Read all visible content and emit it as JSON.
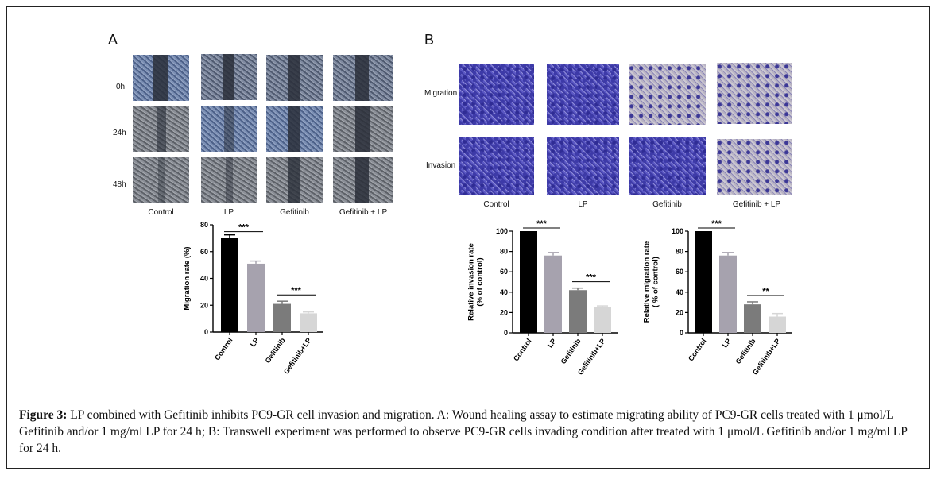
{
  "panelA": {
    "letter": "A",
    "row_labels": [
      "0h",
      "24h",
      "48h"
    ],
    "col_labels": [
      "Control",
      "LP",
      "Gefitinib",
      "Gefitinib + LP"
    ]
  },
  "panelB": {
    "letter": "B",
    "row_labels": [
      "Migration",
      "Invasion"
    ],
    "col_labels": [
      "Control",
      "LP",
      "Gefitinib",
      "Gefitinib + LP"
    ]
  },
  "chart_data": [
    {
      "type": "bar",
      "ylabel": "Migration rate (%)",
      "categories": [
        "Control",
        "LP",
        "Gefitinib",
        "Gefitinib+LP"
      ],
      "values": [
        70,
        51,
        21,
        14
      ],
      "errors": [
        2.5,
        2,
        2,
        1
      ],
      "ylim": [
        0,
        80
      ],
      "yticks": [
        0,
        20,
        40,
        60,
        80
      ],
      "colors": [
        "#000000",
        "#a6a2ae",
        "#7b7b7b",
        "#d6d6d6"
      ],
      "significance": [
        {
          "from": 0,
          "to": 1,
          "label": "***"
        },
        {
          "from": 2,
          "to": 3,
          "label": "***"
        }
      ]
    },
    {
      "type": "bar",
      "ylabel": "Relative invasion rate\n(% of control)",
      "categories": [
        "Control",
        "LP",
        "Gefitinib",
        "Gefitinib+LP"
      ],
      "values": [
        100,
        76,
        42,
        25
      ],
      "errors": [
        0,
        3,
        2,
        1.5
      ],
      "ylim": [
        0,
        100
      ],
      "yticks": [
        0,
        20,
        40,
        60,
        80,
        100
      ],
      "colors": [
        "#000000",
        "#a6a2ae",
        "#7b7b7b",
        "#d6d6d6"
      ],
      "significance": [
        {
          "from": 0,
          "to": 1,
          "label": "***"
        },
        {
          "from": 2,
          "to": 3,
          "label": "***"
        }
      ]
    },
    {
      "type": "bar",
      "ylabel": "Relative migration rate\n( % of control)",
      "categories": [
        "Control",
        "LP",
        "Gefitinib",
        "Gefitinib+LP"
      ],
      "values": [
        100,
        76,
        28,
        16
      ],
      "errors": [
        0,
        3,
        2.5,
        3
      ],
      "ylim": [
        0,
        100
      ],
      "yticks": [
        0,
        20,
        40,
        60,
        80,
        100
      ],
      "colors": [
        "#000000",
        "#a6a2ae",
        "#7b7b7b",
        "#d6d6d6"
      ],
      "significance": [
        {
          "from": 0,
          "to": 1,
          "label": "***"
        },
        {
          "from": 2,
          "to": 3,
          "label": "**"
        }
      ]
    }
  ],
  "caption": {
    "label": "Figure 3:",
    "text": " LP combined with Gefitinib inhibits PC9-GR cell invasion and migration. A: Wound healing assay to  estimate migrating ability of PC9-GR cells treated with 1 μmol/L Gefitinib and/or 1 mg/ml LP for 24 h; B: Transwell experiment was performed to observe PC9-GR cells invading condition after treated with 1 μmol/L Gefitinib and/or 1 mg/ml LP for 24 h."
  }
}
